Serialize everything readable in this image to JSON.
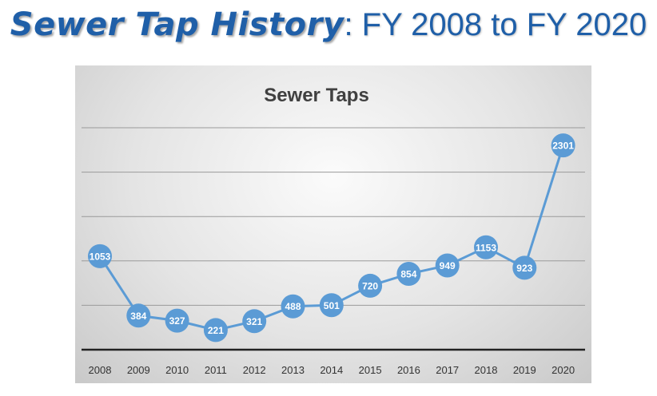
{
  "heading": {
    "bold": "Sewer Tap History",
    "rest": ": FY 2008 to FY 2020"
  },
  "colors": {
    "heading": "#1f5fa8",
    "series": "#5b9bd5"
  },
  "chart_data": {
    "type": "line",
    "title": "Sewer Taps",
    "xlabel": "",
    "ylabel": "",
    "categories": [
      "2008",
      "2009",
      "2010",
      "2011",
      "2012",
      "2013",
      "2014",
      "2015",
      "2016",
      "2017",
      "2018",
      "2019",
      "2020"
    ],
    "series": [
      {
        "values": [
          1053,
          384,
          327,
          221,
          321,
          488,
          501,
          720,
          854,
          949,
          1153,
          923,
          2301
        ]
      }
    ],
    "ylim": [
      0,
      2500
    ],
    "grid": true,
    "legend": "none",
    "data_labels": true
  }
}
